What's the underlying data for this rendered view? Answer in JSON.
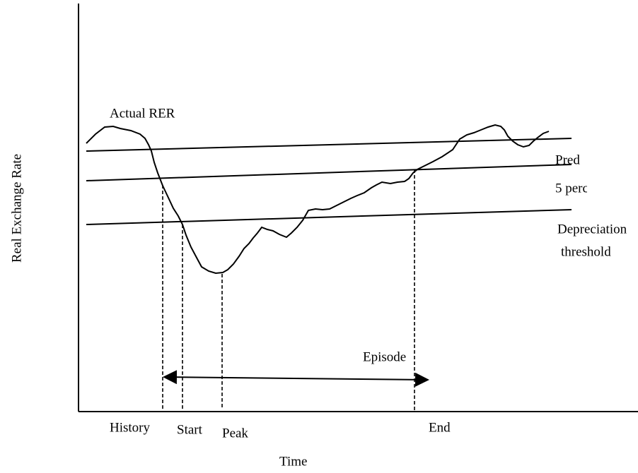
{
  "labels": {
    "actual": "Actual RER",
    "pred": "Pred",
    "five_percent": "5 perc",
    "depreciation": "Depreciation",
    "threshold": "threshold",
    "episode": "Episode",
    "history": "History",
    "start": "Start",
    "peak": "Peak",
    "end": "End"
  },
  "axes": {
    "x_label": "Time",
    "y_label": "Real Exchange Rate"
  }
}
